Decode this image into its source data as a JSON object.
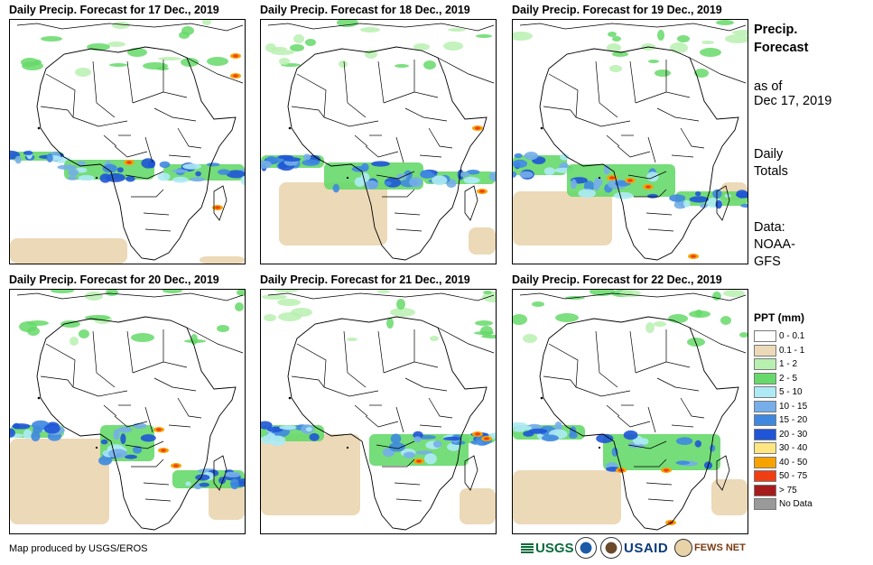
{
  "panels": [
    {
      "title": "Daily Precip. Forecast for 17 Dec., 2019"
    },
    {
      "title": "Daily Precip. Forecast for 18 Dec., 2019"
    },
    {
      "title": "Daily Precip. Forecast for 19 Dec., 2019"
    },
    {
      "title": "Daily Precip. Forecast for 20 Dec., 2019"
    },
    {
      "title": "Daily Precip. Forecast for 21 Dec., 2019"
    },
    {
      "title": "Daily Precip. Forecast for 22 Dec., 2019"
    }
  ],
  "side": {
    "title": "Precip. Forecast",
    "as_of_label": "as of",
    "as_of_date": "Dec 17, 2019",
    "totals_label": "Daily Totals",
    "data_label": "Data:",
    "data_source": "NOAA-GFS"
  },
  "legend": {
    "title": "PPT (mm)",
    "items": [
      {
        "label": "0 - 0.1",
        "color": "#ffffff"
      },
      {
        "label": "0.1 - 1",
        "color": "#ecd9b8"
      },
      {
        "label": "1 - 2",
        "color": "#b8f0b0"
      },
      {
        "label": "2 - 5",
        "color": "#66d96a"
      },
      {
        "label": "5 - 10",
        "color": "#aeeaf6"
      },
      {
        "label": "10 - 15",
        "color": "#76aee9"
      },
      {
        "label": "15 - 20",
        "color": "#3f88e0"
      },
      {
        "label": "20 - 30",
        "color": "#1f55d6"
      },
      {
        "label": "30 - 40",
        "color": "#ffe680"
      },
      {
        "label": "40 - 50",
        "color": "#f6a300"
      },
      {
        "label": "50 - 75",
        "color": "#f03e12"
      },
      {
        "label": "> 75",
        "color": "#a61c1c"
      },
      {
        "label": "No Data",
        "color": "#9a9a9a"
      }
    ]
  },
  "footer": {
    "credit": "Map produced by USGS/EROS",
    "logos": {
      "usgs": "USGS",
      "usaid": "USAID",
      "fews": "FEWS NET"
    }
  }
}
